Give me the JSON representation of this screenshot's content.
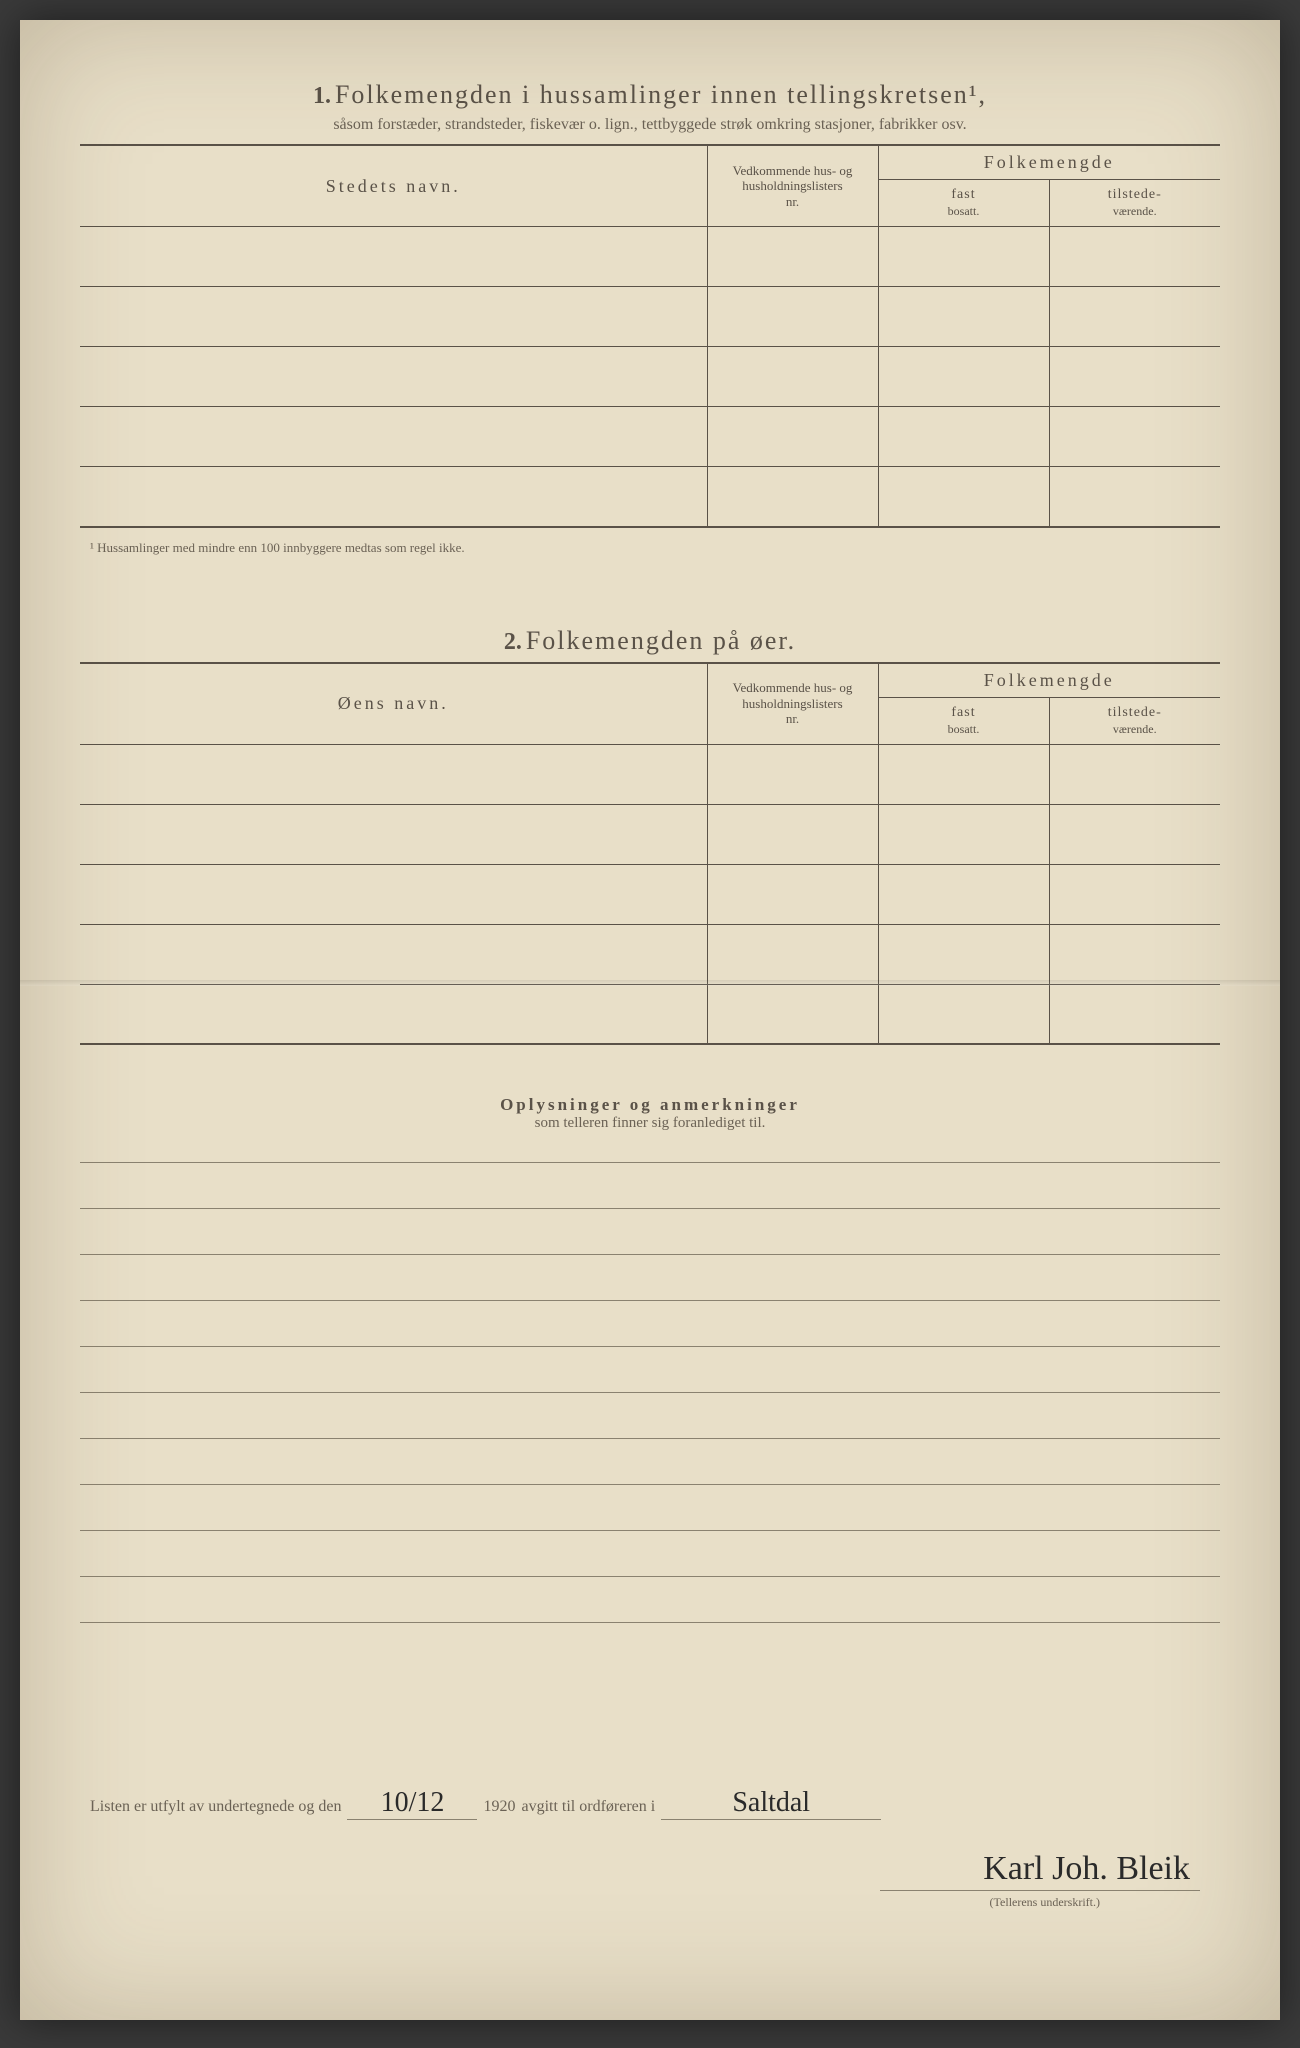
{
  "section1": {
    "number": "1.",
    "title": "Folkemengden i hussamlinger innen tellingskretsen¹,",
    "subtitle": "såsom forstæder, strandsteder, fiskevær o. lign., tettbyggede strøk omkring stasjoner, fabrikker osv.",
    "headers": {
      "name": "Stedets navn.",
      "nr_line1": "Vedkommende hus- og",
      "nr_line2": "husholdningslisters",
      "nr_line3": "nr.",
      "folkemengde": "Folkemengde",
      "fast": "fast",
      "fast2": "bosatt.",
      "tilstede": "tilstede-",
      "tilstede2": "værende."
    },
    "footnote": "¹ Hussamlinger med mindre enn 100 innbyggere medtas som regel ikke.",
    "row_count": 5
  },
  "section2": {
    "number": "2.",
    "title": "Folkemengden på øer.",
    "headers": {
      "name": "Øens navn.",
      "nr_line1": "Vedkommende hus- og",
      "nr_line2": "husholdningslisters",
      "nr_line3": "nr.",
      "folkemengde": "Folkemengde",
      "fast": "fast",
      "fast2": "bosatt.",
      "tilstede": "tilstede-",
      "tilstede2": "værende."
    },
    "row_count": 5
  },
  "remarks": {
    "title": "Oplysninger og anmerkninger",
    "subtitle": "som telleren finner sig foranlediget til.",
    "line_count": 10
  },
  "signature": {
    "prefix": "Listen er utfylt av undertegnede og den",
    "date": "10/12",
    "year": "1920",
    "mid": "avgitt til ordføreren i",
    "place": "Saltdal",
    "signer": "Karl Joh. Bleik",
    "caption": "(Tellerens underskrift.)"
  },
  "colors": {
    "paper": "#e8dfc8",
    "ink": "#5a5248",
    "rule": "#8a8270",
    "bg": "#3a3a3a"
  }
}
